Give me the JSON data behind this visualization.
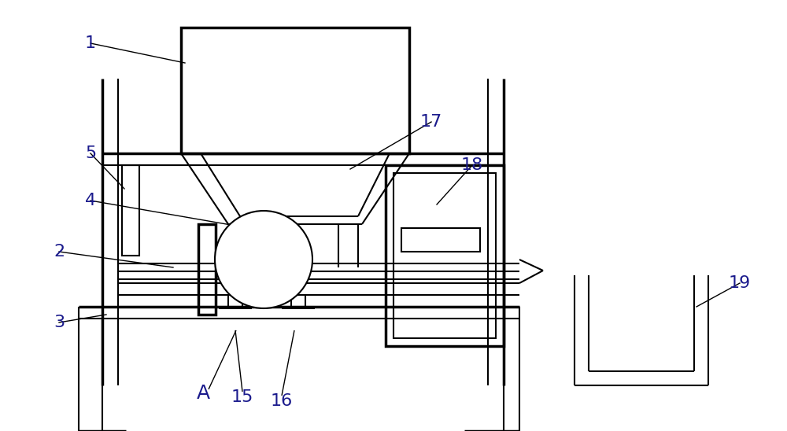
{
  "bg_color": "#ffffff",
  "line_color": "#000000",
  "lw": 1.5,
  "lw_thick": 2.5,
  "fig_width": 10.0,
  "fig_height": 5.48,
  "dpi": 100
}
